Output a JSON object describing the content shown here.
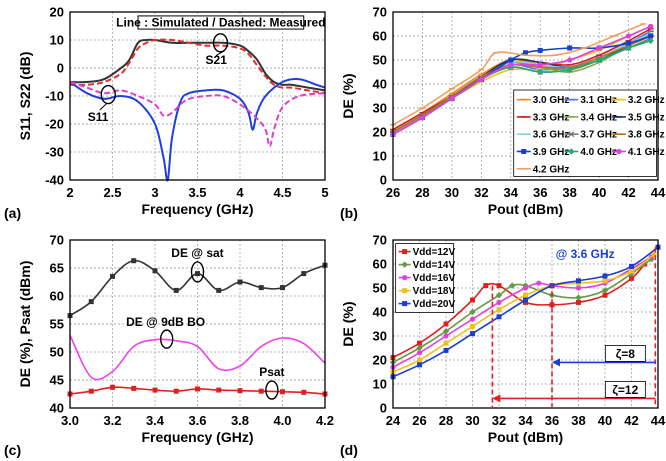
{
  "chart_data": [
    {
      "panel": "(a)",
      "type": "line",
      "xlabel": "Frequency (GHz)",
      "ylabel": "S11, S22 (dB)",
      "xlim": [
        2,
        5
      ],
      "ylim": [
        -40,
        20
      ],
      "xticks": [
        2,
        2.5,
        3,
        3.5,
        4,
        4.5,
        5
      ],
      "yticks": [
        -40,
        -30,
        -20,
        -10,
        0,
        10,
        20
      ],
      "xtick_labels": [
        "2",
        "2.5",
        "3",
        "3.5",
        "4",
        "4.5",
        "5"
      ],
      "ytick_labels": [
        "-40",
        "-30",
        "-20",
        "-10",
        "0",
        "10",
        "20"
      ],
      "legend_text": "Line : Simulated / Dashed: Measured",
      "annotations": [
        "S21",
        "S11"
      ],
      "series": [
        {
          "label": "S21",
          "style": "solid",
          "color": "#333333",
          "x": [
            2,
            2.2,
            2.4,
            2.6,
            2.7,
            2.8,
            2.9,
            3.0,
            3.2,
            3.4,
            3.6,
            3.8,
            4.0,
            4.1,
            4.2,
            4.3,
            4.4,
            4.5,
            4.6,
            4.8,
            5.0
          ],
          "y": [
            -5,
            -5,
            -4,
            0,
            3,
            9,
            10,
            10,
            9,
            9,
            9,
            9,
            8,
            6,
            3,
            -2,
            -5,
            -6,
            -6,
            -7,
            -8
          ]
        },
        {
          "label": "S21",
          "style": "dashed",
          "color": "#e03030",
          "x": [
            2,
            2.2,
            2.4,
            2.6,
            2.7,
            2.8,
            2.9,
            3.0,
            3.2,
            3.4,
            3.6,
            3.8,
            4.0,
            4.1,
            4.2,
            4.3,
            4.4,
            4.5,
            4.6,
            4.8,
            5.0
          ],
          "y": [
            -6,
            -6,
            -5,
            -2,
            2,
            7,
            9,
            10,
            10,
            9,
            8,
            8,
            7,
            5,
            1,
            -3,
            -6,
            -7,
            -7,
            -8,
            -9
          ]
        },
        {
          "label": "S11",
          "style": "solid",
          "color": "#1f3fe0",
          "x": [
            2,
            2.2,
            2.4,
            2.6,
            2.8,
            3.0,
            3.1,
            3.15,
            3.2,
            3.3,
            3.4,
            3.6,
            3.8,
            4.0,
            4.1,
            4.15,
            4.2,
            4.3,
            4.5,
            4.7,
            4.9,
            5.0
          ],
          "y": [
            -5,
            -9,
            -11,
            -10,
            -12,
            -20,
            -32,
            -40,
            -25,
            -12,
            -9,
            -8,
            -8,
            -11,
            -16,
            -22,
            -16,
            -10,
            -5,
            -4,
            -6,
            -7
          ]
        },
        {
          "label": "S11",
          "style": "dashed",
          "color": "#e040c8",
          "x": [
            2,
            2.2,
            2.4,
            2.6,
            2.8,
            3.0,
            3.1,
            3.2,
            3.3,
            3.4,
            3.6,
            3.8,
            4.0,
            4.2,
            4.3,
            4.35,
            4.4,
            4.5,
            4.7,
            5.0
          ],
          "y": [
            -5,
            -7,
            -9,
            -8,
            -10,
            -13,
            -17,
            -16,
            -13,
            -11,
            -10,
            -10,
            -13,
            -18,
            -22,
            -28,
            -22,
            -14,
            -10,
            -9
          ]
        }
      ]
    },
    {
      "panel": "(b)",
      "type": "line",
      "xlabel": "Pout (dBm)",
      "ylabel": "DE (%)",
      "xlim": [
        26,
        44
      ],
      "ylim": [
        0,
        70
      ],
      "xticks": [
        26,
        28,
        30,
        32,
        34,
        36,
        38,
        40,
        42,
        44
      ],
      "yticks": [
        0,
        10,
        20,
        30,
        40,
        50,
        60,
        70
      ],
      "xtick_labels": [
        "26",
        "28",
        "30",
        "32",
        "34",
        "36",
        "38",
        "40",
        "42",
        "44"
      ],
      "ytick_labels": [
        "0",
        "10",
        "20",
        "30",
        "40",
        "50",
        "60",
        "70"
      ],
      "series": [
        {
          "label": "3.0 GHz",
          "color": "#ee8822",
          "marker": "dash",
          "x": [
            26,
            28,
            30,
            32,
            34,
            36,
            38,
            40,
            42,
            43.5
          ],
          "y": [
            21,
            28,
            36,
            44,
            50,
            48,
            46,
            50,
            56,
            61
          ]
        },
        {
          "label": "3.1 GHz",
          "color": "#5577cc",
          "marker": "dash",
          "x": [
            26,
            28,
            30,
            32,
            34,
            36,
            38,
            40,
            42,
            43.5
          ],
          "y": [
            20,
            27,
            35,
            42,
            48,
            46,
            47,
            51,
            57,
            62
          ]
        },
        {
          "label": "3.2 GHz",
          "color": "#f0c020",
          "marker": "dash",
          "x": [
            26,
            28,
            30,
            32,
            34,
            36,
            38,
            40,
            42,
            43.5
          ],
          "y": [
            20,
            27,
            34,
            41,
            46,
            46,
            50,
            54,
            60,
            64
          ]
        },
        {
          "label": "3.3 GHz",
          "color": "#d02020",
          "marker": "dash",
          "x": [
            26,
            28,
            30,
            32,
            34,
            36,
            38,
            40,
            42,
            43.5
          ],
          "y": [
            21,
            28,
            35,
            43,
            50,
            49,
            48,
            52,
            58,
            63
          ]
        },
        {
          "label": "3.4 GHz",
          "color": "#88aa55",
          "marker": "dash",
          "x": [
            26,
            28,
            30,
            32,
            34,
            36,
            38,
            40,
            42,
            43.5
          ],
          "y": [
            20,
            27,
            35,
            43,
            49,
            47,
            45,
            49,
            56,
            61
          ]
        },
        {
          "label": "3.5 GHz",
          "color": "#223366",
          "marker": "dash",
          "x": [
            26,
            28,
            30,
            32,
            34,
            36,
            38,
            40,
            42,
            43.5
          ],
          "y": [
            20,
            27,
            35,
            43,
            50,
            49,
            47,
            50,
            56,
            60
          ]
        },
        {
          "label": "3.6 GHz",
          "color": "#88ccee",
          "marker": "dash",
          "x": [
            26,
            28,
            30,
            32,
            34,
            36,
            38,
            40,
            42,
            43.5
          ],
          "y": [
            19,
            26,
            34,
            42,
            49,
            48,
            47,
            51,
            57,
            61
          ]
        },
        {
          "label": "3.7 GHz",
          "color": "#777777",
          "marker": "cross",
          "x": [
            26,
            28,
            30,
            32,
            34,
            36,
            38,
            40,
            42,
            43.5
          ],
          "y": [
            20,
            27,
            34,
            42,
            47,
            45,
            46,
            50,
            55,
            59
          ]
        },
        {
          "label": "3.8 GHz",
          "color": "#aa7722",
          "marker": "dash",
          "x": [
            26,
            28,
            30,
            32,
            34,
            36,
            38,
            40,
            42,
            43.5
          ],
          "y": [
            20,
            27,
            35,
            43,
            48,
            47,
            47,
            51,
            56,
            60
          ]
        },
        {
          "label": "3.9 GHz",
          "color": "#1a3ecf",
          "marker": "square",
          "x": [
            26,
            28,
            30,
            32,
            34,
            35,
            36,
            38,
            40,
            42,
            43.5
          ],
          "y": [
            19,
            26,
            34,
            42,
            50,
            53,
            54,
            55,
            55,
            57,
            60
          ]
        },
        {
          "label": "4.0 GHz",
          "color": "#22aa77",
          "marker": "diamond",
          "x": [
            26,
            28,
            30,
            32,
            34,
            36,
            38,
            40,
            42,
            43.5
          ],
          "y": [
            19,
            26,
            34,
            42,
            47,
            45,
            46,
            50,
            55,
            58
          ]
        },
        {
          "label": "4.1 GHz",
          "color": "#e040e0",
          "marker": "circle",
          "x": [
            26,
            28,
            30,
            32,
            34,
            36,
            38,
            40,
            42,
            43.5
          ],
          "y": [
            19,
            26,
            34,
            42,
            48,
            48,
            50,
            55,
            60,
            64
          ]
        },
        {
          "label": "4.2 GHz",
          "color": "#f0a060",
          "marker": "dash",
          "x": [
            26,
            28,
            30,
            32,
            33,
            35,
            37,
            39,
            41,
            43
          ],
          "y": [
            23,
            30,
            38,
            46,
            53,
            52,
            52,
            55,
            60,
            65
          ]
        }
      ]
    },
    {
      "panel": "(c)",
      "type": "line",
      "xlabel": "Frequency (GHz)",
      "ylabel": "DE (%), Psat (dBm)",
      "xlim": [
        3.0,
        4.2
      ],
      "ylim": [
        40,
        70
      ],
      "xticks": [
        3.0,
        3.2,
        3.4,
        3.6,
        3.8,
        4.0,
        4.2
      ],
      "yticks": [
        40,
        45,
        50,
        55,
        60,
        65,
        70
      ],
      "xtick_labels": [
        "3.0",
        "3.2",
        "3.4",
        "3.6",
        "3.8",
        "4.0",
        "4.2"
      ],
      "ytick_labels": [
        "40",
        "45",
        "50",
        "55",
        "60",
        "65",
        "70"
      ],
      "annotations": [
        "DE @ sat",
        "DE @ 9dB BO",
        "Psat"
      ],
      "series": [
        {
          "label": "DE @ sat",
          "color": "#333333",
          "marker": "square",
          "x": [
            3.0,
            3.1,
            3.2,
            3.3,
            3.4,
            3.5,
            3.6,
            3.7,
            3.8,
            3.9,
            4.0,
            4.1,
            4.2
          ],
          "y": [
            56.5,
            59,
            63.5,
            66.3,
            64.5,
            61,
            64,
            61,
            62.5,
            61.5,
            61.5,
            64,
            65.5
          ]
        },
        {
          "label": "DE @ 9dB BO",
          "color": "#f040f0",
          "marker": "none",
          "x": [
            3.0,
            3.1,
            3.2,
            3.3,
            3.4,
            3.5,
            3.6,
            3.7,
            3.8,
            3.9,
            4.0,
            4.1,
            4.2
          ],
          "y": [
            53,
            45.5,
            46.5,
            51,
            52.2,
            52,
            51,
            47,
            47.5,
            51,
            52.5,
            51.5,
            48
          ]
        },
        {
          "label": "Psat",
          "color": "#e02020",
          "marker": "square",
          "x": [
            3.0,
            3.1,
            3.2,
            3.3,
            3.4,
            3.5,
            3.6,
            3.7,
            3.8,
            3.9,
            4.0,
            4.1,
            4.2
          ],
          "y": [
            42.5,
            43,
            43.7,
            43.5,
            43.2,
            43,
            43.4,
            43.2,
            43.1,
            43,
            42.9,
            42.8,
            42.5
          ]
        }
      ]
    },
    {
      "panel": "(d)",
      "type": "line",
      "xlabel": "Pout (dBm)",
      "ylabel": "DE (%)",
      "xlim": [
        24,
        44
      ],
      "ylim": [
        0,
        70
      ],
      "xticks": [
        24,
        26,
        28,
        30,
        32,
        34,
        36,
        38,
        40,
        42,
        44
      ],
      "yticks": [
        0,
        10,
        20,
        30,
        40,
        50,
        60,
        70
      ],
      "xtick_labels": [
        "24",
        "26",
        "28",
        "30",
        "32",
        "34",
        "36",
        "38",
        "40",
        "42",
        "44"
      ],
      "ytick_labels": [
        "0",
        "10",
        "20",
        "30",
        "40",
        "50",
        "60",
        "70"
      ],
      "annotation": "@ 3.6 GHz",
      "zeta_labels": [
        "ζ=8",
        "ζ=12"
      ],
      "zeta_arrows": [
        {
          "from": 43.8,
          "to": 36.0,
          "y": 19
        },
        {
          "from": 43.8,
          "to": 31.5,
          "y": 4
        }
      ],
      "series": [
        {
          "label": "Vdd=12V",
          "color": "#e02020",
          "marker": "square",
          "x": [
            24,
            26,
            28,
            30,
            31,
            32,
            34,
            36,
            38,
            40,
            42,
            43
          ],
          "y": [
            21,
            27,
            35,
            45,
            51,
            51,
            44,
            43,
            44,
            47,
            54,
            60
          ]
        },
        {
          "label": "Vdd=14V",
          "color": "#669944",
          "marker": "diamond",
          "x": [
            24,
            26,
            28,
            30,
            32,
            33,
            34,
            36,
            38,
            40,
            42,
            43.5
          ],
          "y": [
            19,
            25,
            32,
            40,
            47,
            51,
            51,
            47,
            46,
            49,
            56,
            62
          ]
        },
        {
          "label": "Vdd=16V",
          "color": "#e040e0",
          "marker": "circle",
          "x": [
            24,
            26,
            28,
            30,
            32,
            34,
            35,
            36,
            38,
            40,
            42,
            43.5
          ],
          "y": [
            17,
            23,
            30,
            37,
            44,
            50,
            52,
            51,
            50,
            52,
            58,
            63
          ]
        },
        {
          "label": "Vdd=18V",
          "color": "#f0c020",
          "marker": "square",
          "x": [
            24,
            26,
            28,
            30,
            32,
            34,
            36,
            38,
            40,
            42,
            43.7
          ],
          "y": [
            15,
            20,
            27,
            34,
            41,
            47,
            51,
            52,
            53,
            57,
            64
          ]
        },
        {
          "label": "Vdd=20V",
          "color": "#1a3ecf",
          "marker": "square",
          "x": [
            24,
            26,
            28,
            30,
            32,
            34,
            36,
            38,
            40,
            42,
            44
          ],
          "y": [
            13,
            18,
            24,
            31,
            38,
            45,
            51,
            53,
            55,
            59,
            67
          ]
        }
      ]
    }
  ],
  "panel_labels": [
    "(a)",
    "(b)",
    "(c)",
    "(d)"
  ]
}
